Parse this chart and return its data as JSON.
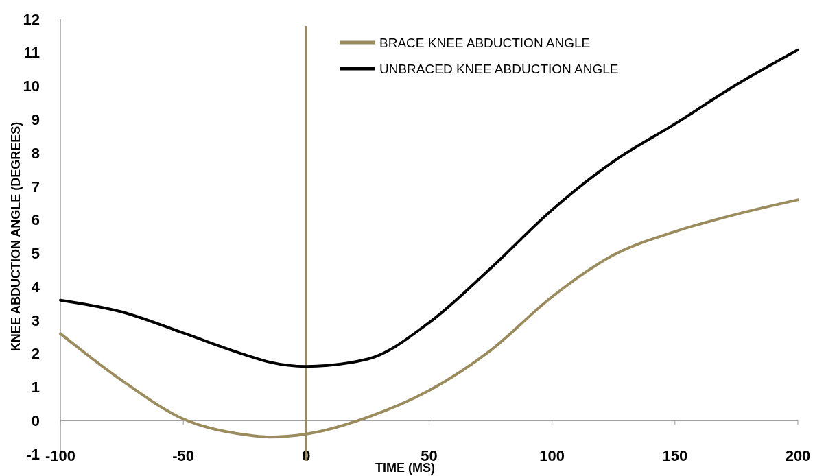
{
  "chart_data": {
    "type": "line",
    "xlabel": "TIME (MS)",
    "ylabel": "KNEE ABDUCTION ANGLE  (DEGREES)",
    "xlim": [
      -100,
      200
    ],
    "xticks": [
      -100,
      -50,
      0,
      50,
      100,
      150,
      200
    ],
    "ylim": [
      -1,
      12
    ],
    "yticks": [
      -1,
      0,
      1,
      2,
      3,
      4,
      5,
      6,
      7,
      8,
      9,
      10,
      11,
      12
    ],
    "x": [
      -100,
      -75,
      -50,
      -25,
      -15,
      0,
      25,
      50,
      75,
      100,
      125,
      150,
      175,
      200
    ],
    "series": [
      {
        "name": "BRACE KNEE ABDUCTION ANGLE",
        "color": "#9a8c5c",
        "values": [
          2.6,
          1.2,
          0.05,
          -0.42,
          -0.49,
          -0.4,
          0.1,
          0.9,
          2.1,
          3.7,
          4.95,
          5.65,
          6.17,
          6.6
        ]
      },
      {
        "name": "UNBRACED KNEE ABDUCTION ANGLE",
        "color": "#000000",
        "values": [
          3.6,
          3.25,
          2.62,
          1.97,
          1.75,
          1.62,
          1.84,
          2.93,
          4.55,
          6.3,
          7.75,
          8.87,
          10.04,
          11.08
        ]
      }
    ],
    "ref_lines": [
      {
        "axis": "x",
        "value": 0,
        "color": "#9a8c5c"
      }
    ],
    "legend": "top",
    "grid": false,
    "line_style": "solid",
    "marker": "none"
  }
}
